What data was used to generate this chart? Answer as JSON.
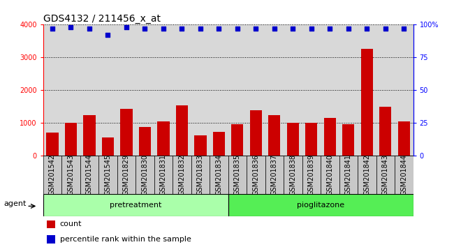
{
  "title": "GDS4132 / 211456_x_at",
  "categories": [
    "GSM201542",
    "GSM201543",
    "GSM201544",
    "GSM201545",
    "GSM201829",
    "GSM201830",
    "GSM201831",
    "GSM201832",
    "GSM201833",
    "GSM201834",
    "GSM201835",
    "GSM201836",
    "GSM201837",
    "GSM201838",
    "GSM201839",
    "GSM201840",
    "GSM201841",
    "GSM201842",
    "GSM201843",
    "GSM201844"
  ],
  "bar_values": [
    700,
    1010,
    1230,
    560,
    1430,
    870,
    1050,
    1530,
    610,
    730,
    960,
    1390,
    1230,
    1010,
    1000,
    1150,
    960,
    3260,
    1500,
    1040
  ],
  "percentile_values": [
    97,
    98,
    97,
    92,
    98,
    97,
    97,
    97,
    97,
    97,
    97,
    97,
    97,
    97,
    97,
    97,
    97,
    97,
    97,
    97
  ],
  "bar_color": "#cc0000",
  "dot_color": "#0000cc",
  "ylim_left": [
    0,
    4000
  ],
  "ylim_right": [
    0,
    100
  ],
  "yticks_left": [
    0,
    1000,
    2000,
    3000,
    4000
  ],
  "yticks_right": [
    0,
    25,
    50,
    75,
    100
  ],
  "yticklabels_right": [
    "0",
    "25",
    "50",
    "75",
    "100%"
  ],
  "group1_label": "pretreatment",
  "group2_label": "pioglitazone",
  "group1_count": 10,
  "group2_count": 10,
  "agent_label": "agent",
  "legend_bar_label": "count",
  "legend_dot_label": "percentile rank within the sample",
  "plot_bg_color": "#d8d8d8",
  "label_bg_color": "#c8c8c8",
  "fig_bg_color": "#ffffff",
  "group1_color": "#aaffaa",
  "group2_color": "#55ee55",
  "title_fontsize": 10,
  "tick_fontsize": 7,
  "label_fontsize": 8,
  "legend_fontsize": 8
}
